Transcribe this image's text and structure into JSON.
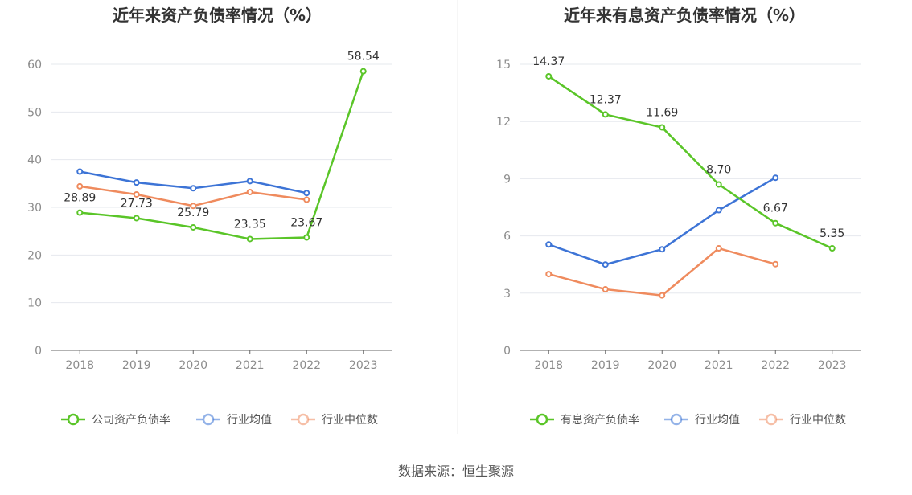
{
  "source": "数据来源：恒生聚源",
  "chart_data": [
    {
      "type": "line",
      "title": "近年来资产负债率情况（%）",
      "categories": [
        "2018",
        "2019",
        "2020",
        "2021",
        "2022",
        "2023"
      ],
      "ylim": [
        0,
        60
      ],
      "yticks": [
        0,
        10,
        20,
        30,
        40,
        50,
        60
      ],
      "grid": true,
      "legend_position": "bottom",
      "series": [
        {
          "name": "公司资产负债率",
          "color": "#5ac528",
          "values": [
            28.89,
            27.73,
            25.79,
            23.35,
            23.67,
            58.54
          ],
          "labels": [
            "28.89",
            "27.73",
            "25.79",
            "23.35",
            "23.67",
            "58.54"
          ]
        },
        {
          "name": "行业均值",
          "color": "#3d74d6",
          "values": [
            37.5,
            35.2,
            34.0,
            35.5,
            33.0,
            null
          ]
        },
        {
          "name": "行业中位数",
          "color": "#ef8b5e",
          "values": [
            34.4,
            32.7,
            30.3,
            33.2,
            31.6,
            null
          ]
        }
      ]
    },
    {
      "type": "line",
      "title": "近年来有息资产负债率情况（%）",
      "categories": [
        "2018",
        "2019",
        "2020",
        "2021",
        "2022",
        "2023"
      ],
      "ylim": [
        0,
        15
      ],
      "yticks": [
        0,
        3,
        6,
        9,
        12,
        15
      ],
      "grid": true,
      "legend_position": "bottom",
      "series": [
        {
          "name": "有息资产负债率",
          "color": "#5ac528",
          "values": [
            14.37,
            12.37,
            11.69,
            8.7,
            6.67,
            5.35
          ],
          "labels": [
            "14.37",
            "12.37",
            "11.69",
            "8.70",
            "6.67",
            "5.35"
          ]
        },
        {
          "name": "行业均值",
          "color": "#3d74d6",
          "values": [
            5.55,
            4.5,
            5.3,
            7.35,
            9.05,
            null
          ]
        },
        {
          "name": "行业中位数",
          "color": "#ef8b5e",
          "values": [
            4.0,
            3.2,
            2.88,
            5.35,
            4.52,
            null
          ]
        }
      ]
    }
  ]
}
